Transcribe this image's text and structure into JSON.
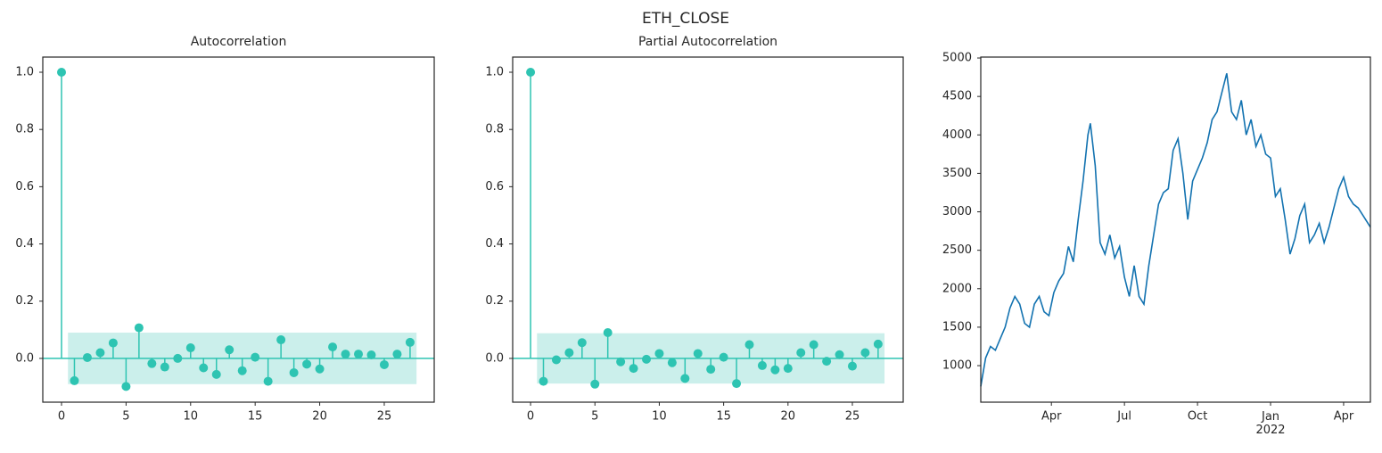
{
  "title": "ETH_CLOSE",
  "chart_data": [
    {
      "type": "stem",
      "title": "Autocorrelation",
      "color": "#2ec4b2",
      "band_color": "#cbefeb",
      "x": [
        0,
        1,
        2,
        3,
        4,
        5,
        6,
        7,
        8,
        9,
        10,
        11,
        12,
        13,
        14,
        15,
        16,
        17,
        18,
        19,
        20,
        21,
        22,
        23,
        24,
        25,
        26,
        27
      ],
      "values": [
        1.0,
        -0.078,
        0.003,
        0.02,
        0.054,
        -0.098,
        0.107,
        -0.018,
        -0.03,
        0.0,
        0.037,
        -0.033,
        -0.056,
        0.03,
        -0.043,
        0.004,
        -0.08,
        0.065,
        -0.05,
        -0.02,
        -0.037,
        0.04,
        0.015,
        0.015,
        0.012,
        -0.022,
        0.015,
        0.056
      ],
      "confidence_band": [
        -0.09,
        0.09
      ],
      "xlim": [
        -1.45,
        28.87
      ],
      "ylim": [
        -0.153,
        1.053
      ],
      "xticks": [
        0,
        5,
        10,
        15,
        20,
        25
      ],
      "yticks": [
        {
          "value": 0,
          "label": "0.0"
        },
        {
          "value": 0.2,
          "label": "0.2"
        },
        {
          "value": 0.4,
          "label": "0.4"
        },
        {
          "value": 0.6,
          "label": "0.6"
        },
        {
          "value": 0.8,
          "label": "0.8"
        },
        {
          "value": 1,
          "label": "1.0"
        }
      ]
    },
    {
      "type": "stem",
      "title": "Partial Autocorrelation",
      "color": "#2ec4b2",
      "band_color": "#cbefeb",
      "x": [
        0,
        1,
        2,
        3,
        4,
        5,
        6,
        7,
        8,
        9,
        10,
        11,
        12,
        13,
        14,
        15,
        16,
        17,
        18,
        19,
        20,
        21,
        22,
        23,
        24,
        25,
        26,
        27
      ],
      "values": [
        1.0,
        -0.08,
        -0.005,
        0.02,
        0.055,
        -0.09,
        0.09,
        -0.012,
        -0.035,
        -0.003,
        0.017,
        -0.015,
        -0.07,
        0.017,
        -0.038,
        0.004,
        -0.088,
        0.048,
        -0.025,
        -0.04,
        -0.035,
        0.02,
        0.048,
        -0.01,
        0.013,
        -0.027,
        0.02,
        0.05
      ],
      "confidence_band": [
        -0.088,
        0.088
      ],
      "xlim": [
        -1.39,
        28.95
      ],
      "ylim": [
        -0.153,
        1.053
      ],
      "xticks": [
        0,
        5,
        10,
        15,
        20,
        25
      ],
      "yticks": [
        {
          "value": 0,
          "label": "0.0"
        },
        {
          "value": 0.2,
          "label": "0.2"
        },
        {
          "value": 0.4,
          "label": "0.4"
        },
        {
          "value": 0.6,
          "label": "0.6"
        },
        {
          "value": 0.8,
          "label": "0.8"
        },
        {
          "value": 1,
          "label": "1.0"
        }
      ]
    },
    {
      "type": "line",
      "color": "#1272b0",
      "x": [
        0.1,
        0.3,
        0.5,
        0.7,
        0.9,
        1.1,
        1.3,
        1.5,
        1.7,
        1.9,
        2.1,
        2.3,
        2.5,
        2.7,
        2.9,
        3.1,
        3.3,
        3.5,
        3.7,
        3.9,
        4.1,
        4.3,
        4.5,
        4.6,
        4.8,
        5.0,
        5.2,
        5.4,
        5.6,
        5.8,
        6.0,
        6.2,
        6.4,
        6.6,
        6.8,
        7.0,
        7.2,
        7.4,
        7.6,
        7.8,
        8.0,
        8.2,
        8.4,
        8.6,
        8.8,
        9.0,
        9.2,
        9.4,
        9.6,
        9.8,
        10.0,
        10.2,
        10.4,
        10.6,
        10.8,
        11.0,
        11.2,
        11.4,
        11.6,
        11.8,
        12.0,
        12.2,
        12.4,
        12.6,
        12.8,
        13.0,
        13.2,
        13.4,
        13.6,
        13.8,
        14.0,
        14.2,
        14.4,
        14.6,
        14.8,
        15.0,
        15.2,
        15.4,
        15.6,
        15.8,
        16.0,
        16.1
      ],
      "values": [
        730,
        1100,
        1250,
        1200,
        1350,
        1500,
        1750,
        1900,
        1800,
        1550,
        1500,
        1800,
        1900,
        1700,
        1650,
        1950,
        2100,
        2200,
        2550,
        2350,
        2900,
        3400,
        4000,
        4150,
        3600,
        2600,
        2450,
        2700,
        2400,
        2550,
        2150,
        1900,
        2300,
        1900,
        1800,
        2300,
        2700,
        3100,
        3250,
        3300,
        3800,
        3950,
        3500,
        2900,
        3400,
        3550,
        3700,
        3900,
        4200,
        4300,
        4550,
        4800,
        4300,
        4200,
        4450,
        4000,
        4200,
        3850,
        4000,
        3750,
        3700,
        3200,
        3300,
        2900,
        2450,
        2650,
        2950,
        3100,
        2600,
        2700,
        2850,
        2600,
        2800,
        3050,
        3300,
        3450,
        3200,
        3100,
        3050,
        2950,
        2850,
        2800
      ],
      "xlim": [
        0.1,
        16.1
      ],
      "ylim": [
        525,
        5012
      ],
      "xticks": [
        {
          "value": 3,
          "label": "Apr"
        },
        {
          "value": 6,
          "label": "Jul"
        },
        {
          "value": 9,
          "label": "Oct"
        },
        {
          "value": 12,
          "label": "Jan\n2022"
        },
        {
          "value": 15,
          "label": "Apr"
        }
      ],
      "yticks": [
        1000,
        1500,
        2000,
        2500,
        3000,
        3500,
        4000,
        4500,
        5000
      ]
    }
  ]
}
